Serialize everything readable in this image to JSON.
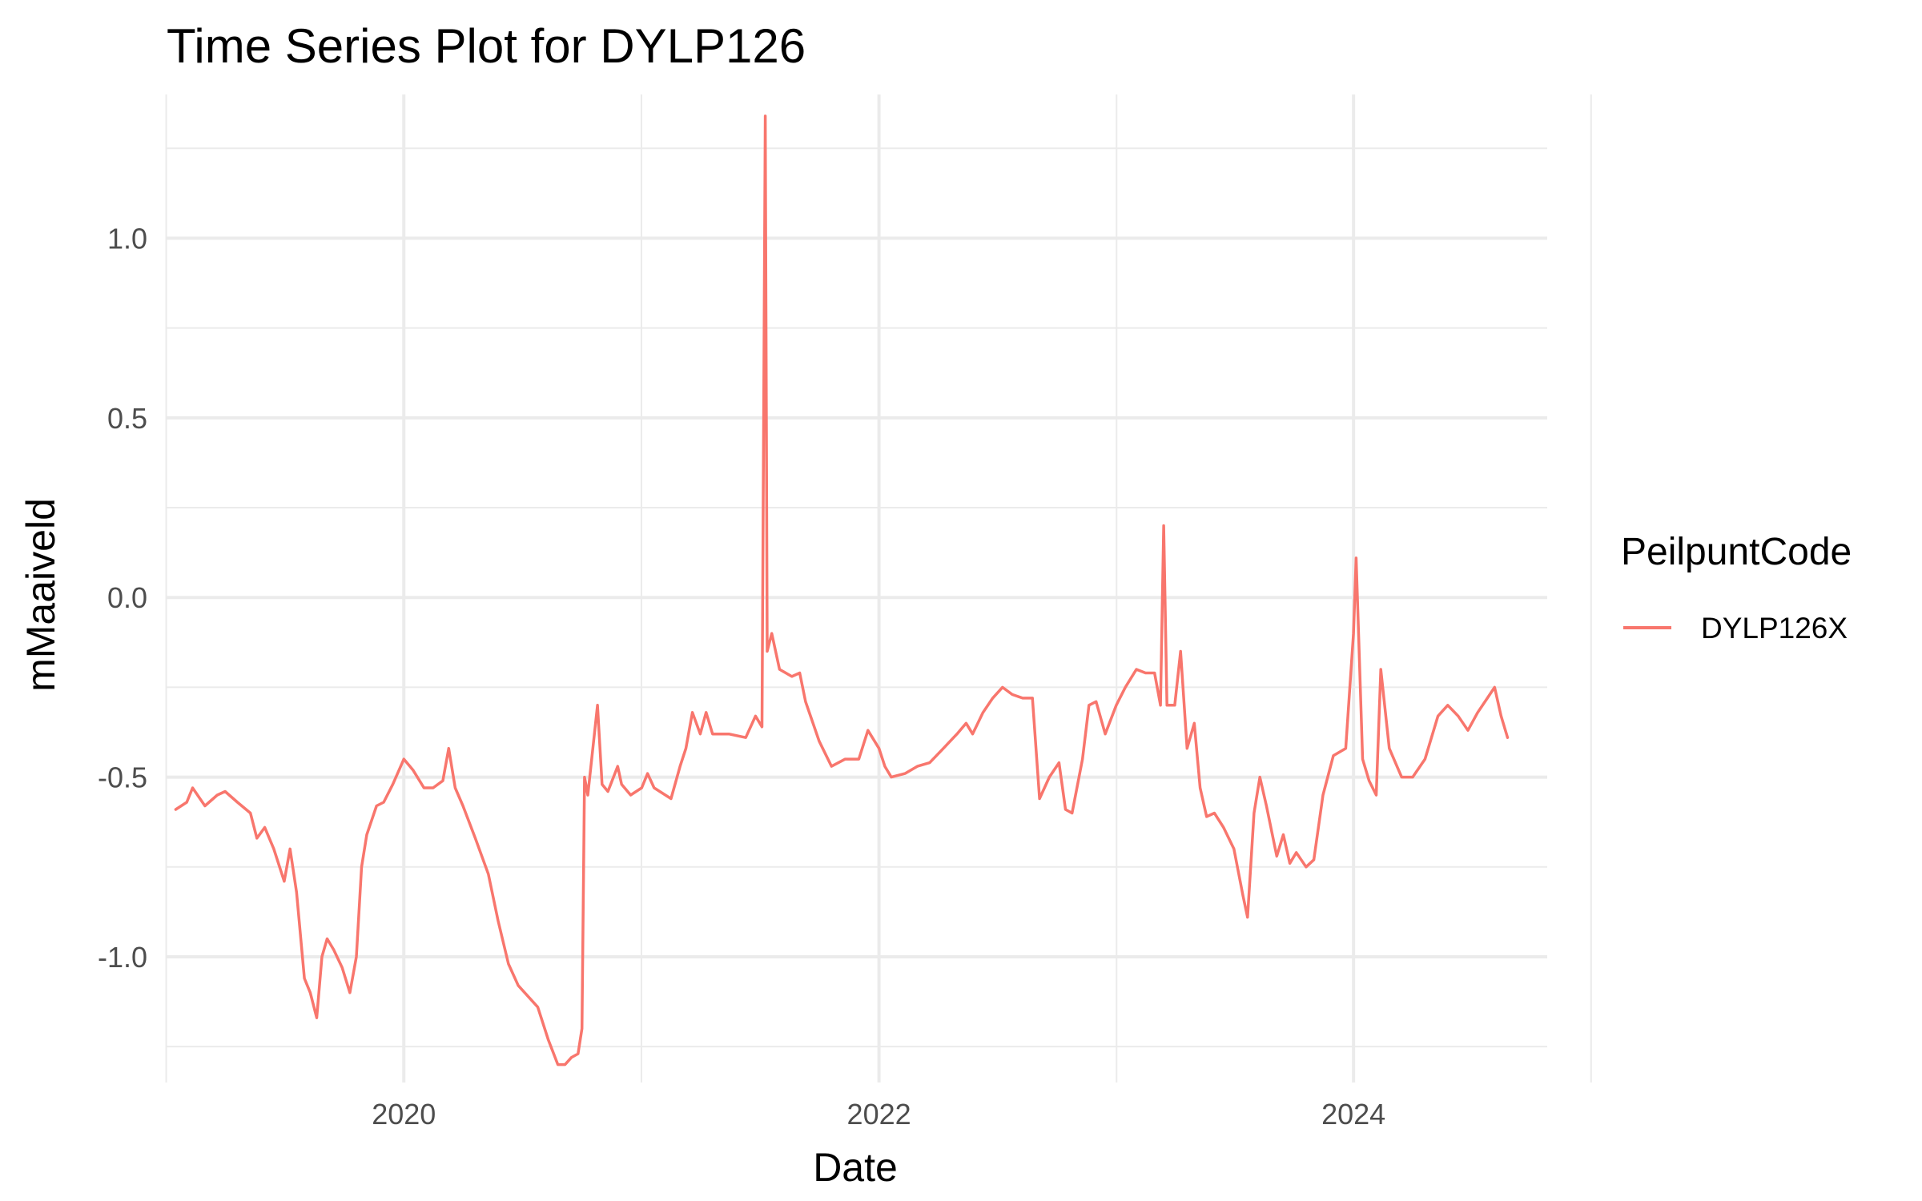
{
  "chart_data": {
    "type": "line",
    "title": "Time Series Plot for DYLP126",
    "xlabel": "Date",
    "ylabel": "mMaaiveld",
    "x_axis_type": "date",
    "xlim": [
      "2019-01-01",
      "2024-10-25"
    ],
    "ylim": [
      -1.35,
      1.4
    ],
    "x_ticks": [
      "2020-01-01",
      "2022-01-01",
      "2024-01-01"
    ],
    "x_tick_labels": [
      "2020",
      "2022",
      "2024"
    ],
    "y_ticks": [
      1.0,
      0.5,
      0.0,
      -0.5,
      -1.0
    ],
    "y_tick_labels": [
      "1.0",
      "0.5",
      "0.0",
      "-0.5",
      "-1.0"
    ],
    "grid": true,
    "legend": {
      "title": "PeilpuntCode",
      "position": "right"
    },
    "series": [
      {
        "name": "DYLP126X",
        "color": "#F8766D",
        "points": [
          [
            "2019-01-15",
            -0.59
          ],
          [
            "2019-02-01",
            -0.57
          ],
          [
            "2019-02-10",
            -0.53
          ],
          [
            "2019-03-01",
            -0.58
          ],
          [
            "2019-03-20",
            -0.55
          ],
          [
            "2019-04-01",
            -0.54
          ],
          [
            "2019-04-20",
            -0.57
          ],
          [
            "2019-05-10",
            -0.6
          ],
          [
            "2019-05-20",
            -0.67
          ],
          [
            "2019-06-01",
            -0.64
          ],
          [
            "2019-06-15",
            -0.7
          ],
          [
            "2019-07-01",
            -0.79
          ],
          [
            "2019-07-10",
            -0.7
          ],
          [
            "2019-07-20",
            -0.82
          ],
          [
            "2019-08-01",
            -1.06
          ],
          [
            "2019-08-10",
            -1.1
          ],
          [
            "2019-08-20",
            -1.17
          ],
          [
            "2019-08-28",
            -1.0
          ],
          [
            "2019-09-05",
            -0.95
          ],
          [
            "2019-09-15",
            -0.98
          ],
          [
            "2019-09-28",
            -1.03
          ],
          [
            "2019-10-10",
            -1.1
          ],
          [
            "2019-10-20",
            -1.0
          ],
          [
            "2019-10-28",
            -0.75
          ],
          [
            "2019-11-05",
            -0.66
          ],
          [
            "2019-11-20",
            -0.58
          ],
          [
            "2019-12-01",
            -0.57
          ],
          [
            "2019-12-15",
            -0.52
          ],
          [
            "2020-01-01",
            -0.45
          ],
          [
            "2020-01-15",
            -0.48
          ],
          [
            "2020-02-01",
            -0.53
          ],
          [
            "2020-02-15",
            -0.53
          ],
          [
            "2020-03-01",
            -0.51
          ],
          [
            "2020-03-10",
            -0.42
          ],
          [
            "2020-03-20",
            -0.53
          ],
          [
            "2020-04-01",
            -0.58
          ],
          [
            "2020-04-20",
            -0.67
          ],
          [
            "2020-05-10",
            -0.77
          ],
          [
            "2020-05-25",
            -0.9
          ],
          [
            "2020-06-10",
            -1.02
          ],
          [
            "2020-06-25",
            -1.08
          ],
          [
            "2020-07-05",
            -1.1
          ],
          [
            "2020-07-25",
            -1.14
          ],
          [
            "2020-08-10",
            -1.23
          ],
          [
            "2020-08-25",
            -1.3
          ],
          [
            "2020-09-05",
            -1.3
          ],
          [
            "2020-09-15",
            -1.28
          ],
          [
            "2020-09-25",
            -1.27
          ],
          [
            "2020-10-01",
            -1.2
          ],
          [
            "2020-10-05",
            -0.5
          ],
          [
            "2020-10-10",
            -0.55
          ],
          [
            "2020-10-25",
            -0.3
          ],
          [
            "2020-11-01",
            -0.52
          ],
          [
            "2020-11-10",
            -0.54
          ],
          [
            "2020-11-25",
            -0.47
          ],
          [
            "2020-12-01",
            -0.52
          ],
          [
            "2020-12-15",
            -0.55
          ],
          [
            "2021-01-01",
            -0.53
          ],
          [
            "2021-01-10",
            -0.49
          ],
          [
            "2021-01-20",
            -0.53
          ],
          [
            "2021-02-15",
            -0.56
          ],
          [
            "2021-03-01",
            -0.47
          ],
          [
            "2021-03-10",
            -0.42
          ],
          [
            "2021-03-20",
            -0.32
          ],
          [
            "2021-04-01",
            -0.38
          ],
          [
            "2021-04-10",
            -0.32
          ],
          [
            "2021-04-20",
            -0.38
          ],
          [
            "2021-05-15",
            -0.38
          ],
          [
            "2021-06-10",
            -0.39
          ],
          [
            "2021-06-25",
            -0.33
          ],
          [
            "2021-07-05",
            -0.36
          ],
          [
            "2021-07-10",
            1.34
          ],
          [
            "2021-07-13",
            -0.15
          ],
          [
            "2021-07-20",
            -0.1
          ],
          [
            "2021-08-01",
            -0.2
          ],
          [
            "2021-08-20",
            -0.22
          ],
          [
            "2021-09-01",
            -0.21
          ],
          [
            "2021-09-10",
            -0.29
          ],
          [
            "2021-10-01",
            -0.4
          ],
          [
            "2021-10-20",
            -0.47
          ],
          [
            "2021-11-10",
            -0.45
          ],
          [
            "2021-12-01",
            -0.45
          ],
          [
            "2021-12-15",
            -0.37
          ],
          [
            "2022-01-01",
            -0.42
          ],
          [
            "2022-01-10",
            -0.47
          ],
          [
            "2022-01-20",
            -0.5
          ],
          [
            "2022-02-10",
            -0.49
          ],
          [
            "2022-03-01",
            -0.47
          ],
          [
            "2022-03-20",
            -0.46
          ],
          [
            "2022-04-10",
            -0.42
          ],
          [
            "2022-05-01",
            -0.38
          ],
          [
            "2022-05-15",
            -0.35
          ],
          [
            "2022-05-25",
            -0.38
          ],
          [
            "2022-06-10",
            -0.32
          ],
          [
            "2022-06-25",
            -0.28
          ],
          [
            "2022-07-10",
            -0.25
          ],
          [
            "2022-07-25",
            -0.27
          ],
          [
            "2022-08-10",
            -0.28
          ],
          [
            "2022-08-25",
            -0.28
          ],
          [
            "2022-09-05",
            -0.56
          ],
          [
            "2022-09-20",
            -0.5
          ],
          [
            "2022-10-05",
            -0.46
          ],
          [
            "2022-10-15",
            -0.59
          ],
          [
            "2022-10-25",
            -0.6
          ],
          [
            "2022-11-10",
            -0.45
          ],
          [
            "2022-11-20",
            -0.3
          ],
          [
            "2022-12-01",
            -0.29
          ],
          [
            "2022-12-15",
            -0.38
          ],
          [
            "2023-01-01",
            -0.3
          ],
          [
            "2023-01-15",
            -0.25
          ],
          [
            "2023-02-01",
            -0.2
          ],
          [
            "2023-02-15",
            -0.21
          ],
          [
            "2023-03-01",
            -0.21
          ],
          [
            "2023-03-10",
            -0.3
          ],
          [
            "2023-03-15",
            0.2
          ],
          [
            "2023-03-20",
            -0.3
          ],
          [
            "2023-04-01",
            -0.3
          ],
          [
            "2023-04-10",
            -0.15
          ],
          [
            "2023-04-20",
            -0.42
          ],
          [
            "2023-05-01",
            -0.35
          ],
          [
            "2023-05-10",
            -0.53
          ],
          [
            "2023-05-20",
            -0.61
          ],
          [
            "2023-06-01",
            -0.6
          ],
          [
            "2023-06-15",
            -0.64
          ],
          [
            "2023-07-01",
            -0.7
          ],
          [
            "2023-07-15",
            -0.83
          ],
          [
            "2023-07-22",
            -0.89
          ],
          [
            "2023-08-01",
            -0.6
          ],
          [
            "2023-08-10",
            -0.5
          ],
          [
            "2023-08-20",
            -0.58
          ],
          [
            "2023-09-05",
            -0.72
          ],
          [
            "2023-09-15",
            -0.66
          ],
          [
            "2023-09-25",
            -0.74
          ],
          [
            "2023-10-05",
            -0.71
          ],
          [
            "2023-10-20",
            -0.75
          ],
          [
            "2023-11-01",
            -0.73
          ],
          [
            "2023-11-15",
            -0.55
          ],
          [
            "2023-12-01",
            -0.44
          ],
          [
            "2023-12-20",
            -0.42
          ],
          [
            "2024-01-01",
            -0.1
          ],
          [
            "2024-01-05",
            0.11
          ],
          [
            "2024-01-15",
            -0.45
          ],
          [
            "2024-01-25",
            -0.51
          ],
          [
            "2024-02-05",
            -0.55
          ],
          [
            "2024-02-12",
            -0.2
          ],
          [
            "2024-02-25",
            -0.42
          ],
          [
            "2024-03-15",
            -0.5
          ],
          [
            "2024-04-01",
            -0.5
          ],
          [
            "2024-04-20",
            -0.45
          ],
          [
            "2024-05-10",
            -0.33
          ],
          [
            "2024-05-25",
            -0.3
          ],
          [
            "2024-06-10",
            -0.33
          ],
          [
            "2024-06-25",
            -0.37
          ],
          [
            "2024-07-10",
            -0.32
          ],
          [
            "2024-07-25",
            -0.28
          ],
          [
            "2024-08-05",
            -0.25
          ],
          [
            "2024-08-15",
            -0.33
          ],
          [
            "2024-08-25",
            -0.39
          ]
        ]
      }
    ]
  }
}
